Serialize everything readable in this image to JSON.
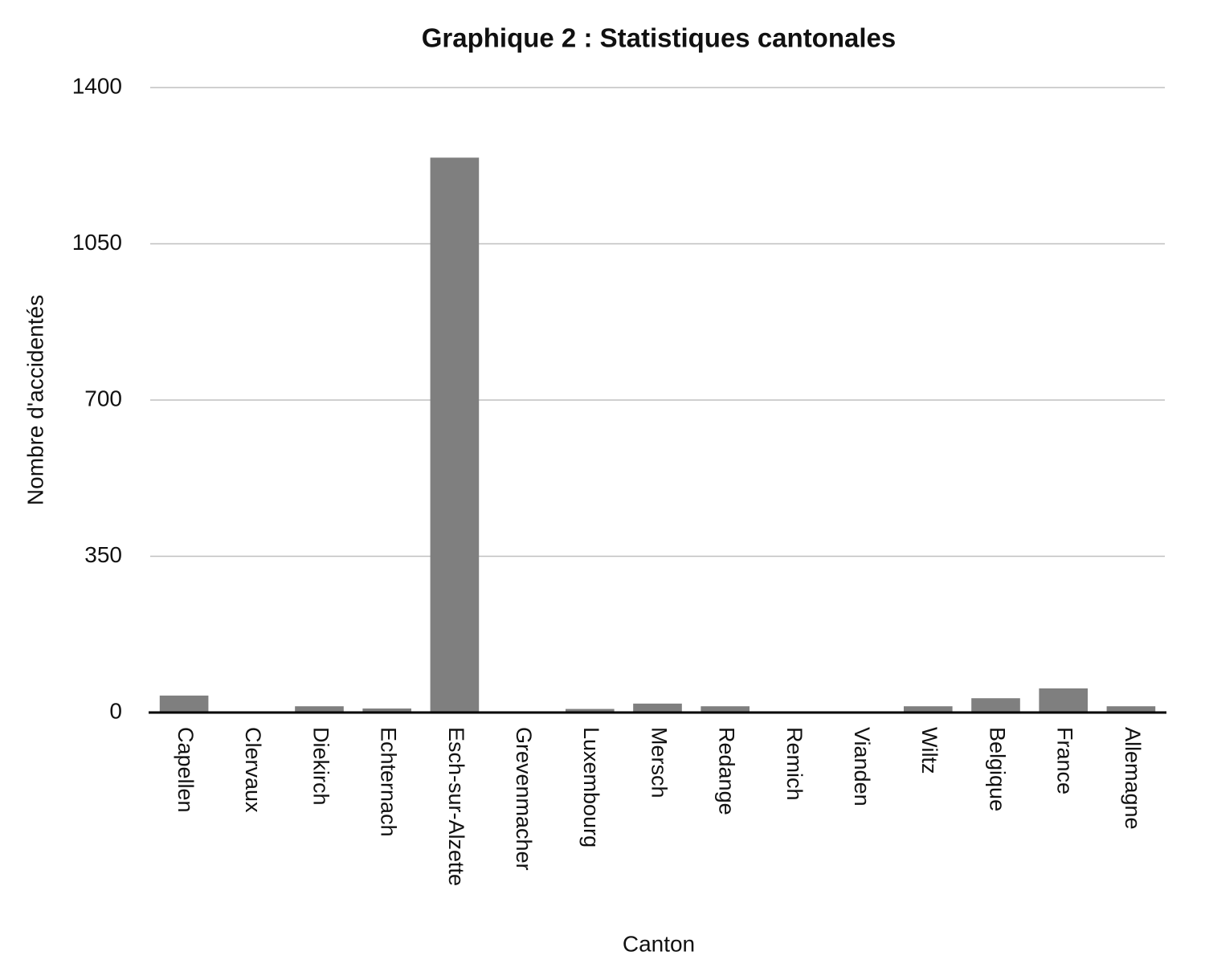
{
  "chart_data": {
    "type": "bar",
    "title": "Graphique 2 : Statistiques cantonales",
    "x_label": "Canton",
    "y_label": "Nombre d'accidentés",
    "categories": [
      "Capellen",
      "Clervaux",
      "Diekirch",
      "Echternach",
      "Esch-sur-Alzette",
      "Grevenmacher",
      "Luxembourg",
      "Mersch",
      "Redange",
      "Remich",
      "Vianden",
      "Wiltz",
      "Belgique",
      "France",
      "Allemagne"
    ],
    "values": [
      38,
      0,
      14,
      9,
      1243,
      0,
      8,
      20,
      14,
      0,
      0,
      14,
      32,
      54,
      14
    ],
    "color": "#7f7f7f",
    "ylim": [
      0,
      1400
    ],
    "yticks": [
      0,
      350,
      700,
      1050,
      1400
    ],
    "grid": true
  }
}
